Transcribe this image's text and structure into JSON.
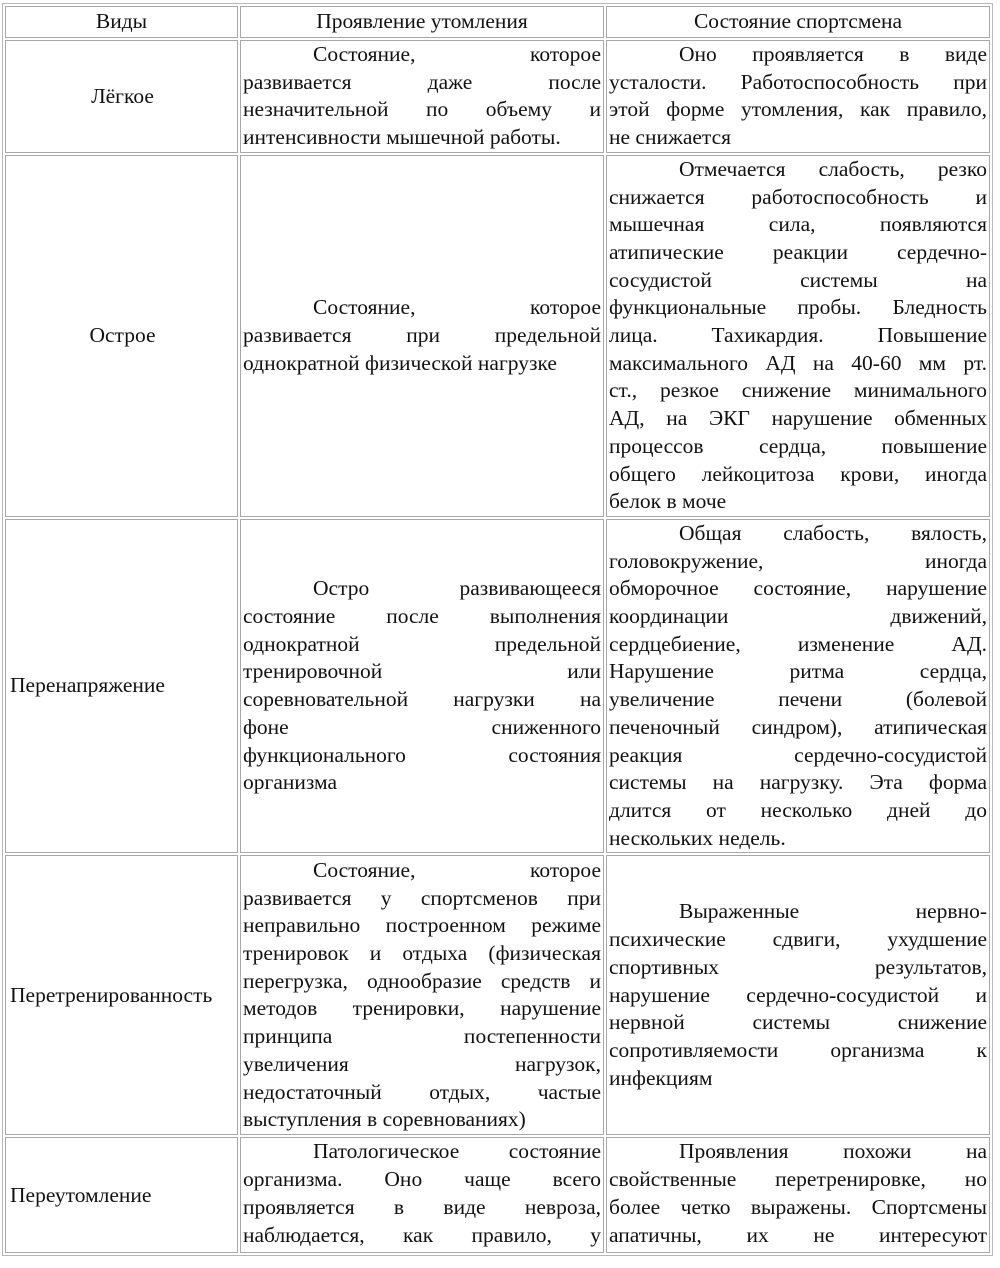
{
  "headers": [
    "Виды",
    "Проявление утомления",
    "Состояние спортсмена"
  ],
  "rows": [
    {
      "kind": "Лёгкое",
      "manifestation": [
        "Состояние, которое",
        "развивается даже после",
        "незначительной по объему и",
        "интенсивности мышечной работы."
      ],
      "state": [
        "Оно проявляется в виде",
        "усталости. Работоспособность при",
        "этой форме утомления, как правило,",
        "не снижается"
      ]
    },
    {
      "kind": "Острое",
      "manifestation": [
        "Состояние, которое",
        "развивается при предельной",
        "однократной физической нагрузке"
      ],
      "state": [
        "Отмечается слабость, резко",
        "снижается работоспособность и",
        "мышечная сила, появляются",
        "атипические реакции сердечно-",
        "сосудистой системы на",
        "функциональные пробы. Бледность",
        "лица. Тахикардия. Повышение",
        "максимального АД на 40-60 мм рт.",
        "ст., резкое снижение минимального",
        "АД, на ЭКГ нарушение обменных",
        "процессов сердца, повышение",
        "общего лейкоцитоза крови, иногда",
        "белок в моче"
      ]
    },
    {
      "kind": "Перенапряжение",
      "manifestation": [
        "Остро развивающееся",
        "состояние после выполнения",
        "однократной предельной",
        "тренировочной или",
        "соревновательной нагрузки на",
        "фоне сниженного",
        "функционального состояния",
        "организма"
      ],
      "state": [
        "Общая слабость, вялость,",
        "головокружение, иногда",
        "обморочное состояние, нарушение",
        "координации движений,",
        "сердцебиение, изменение АД.",
        "Нарушение ритма сердца,",
        "увеличение печени (болевой",
        "печеночный синдром), атипическая",
        "реакция сердечно-сосудистой",
        "системы на нагрузку. Эта форма",
        "длится от несколько дней до",
        "нескольких недель."
      ]
    },
    {
      "kind": "Перетренированность",
      "manifestation": [
        "Состояние, которое",
        "развивается у спортсменов при",
        "неправильно построенном режиме",
        "тренировок и отдыха (физическая",
        "перегрузка, однообразие средств и",
        "методов тренировки, нарушение",
        "принципа постепенности",
        "увеличения нагрузок,",
        "недостаточный отдых, частые",
        "выступления в соревнованиях)"
      ],
      "state": [
        "Выраженные нервно-",
        "психические сдвиги, ухудшение",
        "спортивных результатов,",
        "нарушение сердечно-сосудистой и",
        "нервной системы снижение",
        "сопротивляемости организма к",
        "инфекциям"
      ]
    },
    {
      "kind": "Переутомление",
      "manifestation": [
        "Патологическое состояние",
        "организма. Оно чаще всего",
        "проявляется в виде невроза,",
        "наблюдается, как правило, у"
      ],
      "state": [
        "Проявления похожи на",
        "свойственные перетренировке, но",
        "более четко выражены. Спортсмены",
        "апатичны, их не интересуют"
      ]
    }
  ]
}
